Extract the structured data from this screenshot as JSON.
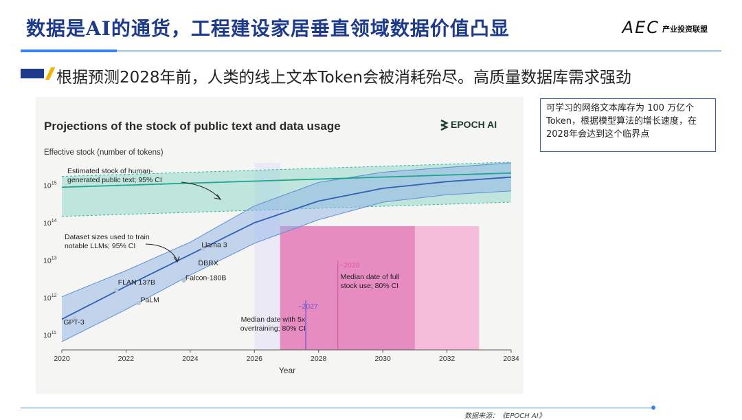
{
  "header": {
    "title": "数据是AI的通货，工程建设家居垂直领域数据价值凸显",
    "logo_mark": "AEC",
    "logo_sub": "产业投资联盟"
  },
  "subtitle": "根据预测2028年前，人类的线上文本Token会被消耗殆尽。高质量数据库需求强劲",
  "note": "可学习的网络文本库存为 100 万亿个 Token，根据模型算法的增长速度，在2028年会达到这个临界点",
  "source": "数据来源：《EPOCH AI》",
  "colors": {
    "title": "#1e3a8a",
    "human_band": "#2ab59e",
    "llm_band": "#5b8fd6",
    "pink": "#e05aa8"
  },
  "chart_data": {
    "type": "line",
    "title": "Projections of the stock of public text and data usage",
    "brand": "EPOCH AI",
    "brand_icon": "epoch-logo-icon",
    "ylabel": "Effective stock (number of tokens)",
    "xlabel": "Year",
    "yscale": "log",
    "xlim": [
      2020,
      2034
    ],
    "ylim_log10": [
      10.6,
      15.6
    ],
    "x_ticks": [
      "2020",
      "2022",
      "2024",
      "2026",
      "2028",
      "2030",
      "2032",
      "2034"
    ],
    "y_ticks": [
      {
        "exp": 11,
        "label": "10",
        "sup": "11"
      },
      {
        "exp": 12,
        "label": "10",
        "sup": "12"
      },
      {
        "exp": 13,
        "label": "10",
        "sup": "13"
      },
      {
        "exp": 14,
        "label": "10",
        "sup": "14"
      },
      {
        "exp": 15,
        "label": "10",
        "sup": "15"
      }
    ],
    "series": [
      {
        "name": "Estimated stock of human-generated public text; 95% CI",
        "median": [
          [
            2020,
            14.95
          ],
          [
            2034,
            15.33
          ]
        ],
        "upper": [
          [
            2020,
            15.24
          ],
          [
            2034,
            15.62
          ]
        ],
        "lower": [
          [
            2020,
            14.17
          ],
          [
            2034,
            14.55
          ]
        ]
      },
      {
        "name": "Dataset sizes used to train notable LLMs; 95% CI",
        "median": [
          [
            2020,
            11.42
          ],
          [
            2022,
            12.3
          ],
          [
            2024,
            13.15
          ],
          [
            2026,
            14.0
          ],
          [
            2028,
            14.58
          ],
          [
            2030,
            14.92
          ],
          [
            2032,
            15.1
          ],
          [
            2034,
            15.22
          ]
        ],
        "upper": [
          [
            2020,
            12.02
          ],
          [
            2022,
            12.72
          ],
          [
            2024,
            13.48
          ],
          [
            2026,
            14.45
          ],
          [
            2028,
            15.08
          ],
          [
            2030,
            15.35
          ],
          [
            2032,
            15.48
          ],
          [
            2034,
            15.6
          ]
        ],
        "lower": [
          [
            2020,
            10.82
          ],
          [
            2022,
            11.68
          ],
          [
            2024,
            12.6
          ],
          [
            2026,
            13.45
          ],
          [
            2028,
            14.08
          ],
          [
            2030,
            14.55
          ],
          [
            2032,
            14.75
          ],
          [
            2034,
            14.85
          ]
        ]
      }
    ],
    "annotations": [
      {
        "text": "Estimated stock of human-generated public text; 95% CI",
        "lines": [
          "Estimated stock of human-",
          "generated public text; 95% CI"
        ]
      },
      {
        "text": "Dataset sizes used to train notable LLMs; 95% CI",
        "lines": [
          "Dataset sizes used to train",
          "notable LLMs; 95% CI"
        ]
      },
      {
        "text": "~2027",
        "color": "#6a5acd"
      },
      {
        "text": "Median date with 5x overtraining; 80% CI",
        "lines": [
          "Median date with 5x",
          "overtraining; 80% CI"
        ]
      },
      {
        "text": "~2028",
        "color": "#e05aa8"
      },
      {
        "text": "Median date of full stock use; 80% CI",
        "lines": [
          "Median date of full",
          "stock use; 80% CI"
        ]
      }
    ],
    "models": [
      {
        "name": "GPT-3",
        "x": 2020.4,
        "y": 11.45
      },
      {
        "name": "FLAN 137B",
        "x": 2021.7,
        "y": 12.2
      },
      {
        "name": "PaLM",
        "x": 2022.4,
        "y": 11.85
      },
      {
        "name": "Falcon-180B",
        "x": 2023.8,
        "y": 12.45
      },
      {
        "name": "DBRX",
        "x": 2024.3,
        "y": 13.0
      },
      {
        "name": "Llama 3",
        "x": 2024.4,
        "y": 13.3
      }
    ],
    "ci_ranges": [
      {
        "name": "5x overtraining",
        "median": 2027.6,
        "range": [
          2026.8,
          2031.0
        ]
      },
      {
        "name": "full stock use",
        "median": 2028.6,
        "range": [
          2026.8,
          2033.0
        ]
      }
    ]
  }
}
